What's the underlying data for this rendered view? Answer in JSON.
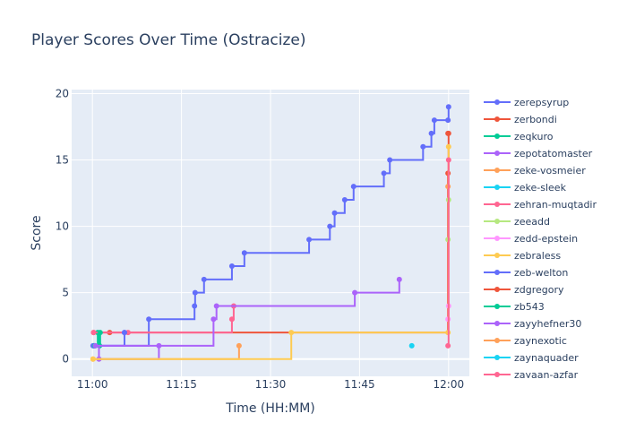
{
  "chart_data": {
    "type": "line",
    "title": "Player Scores Over Time (Ostracize)",
    "xlabel": "Time (HH:MM)",
    "ylabel": "Score",
    "line_shape": "step",
    "x_unit": "minutes after 11:00",
    "x_ticks": [
      "11:00",
      "11:15",
      "11:30",
      "11:45",
      "12:00"
    ],
    "x_tick_values": [
      0,
      15,
      30,
      45,
      60
    ],
    "y_ticks": [
      0,
      5,
      10,
      15,
      20
    ],
    "xlim": [
      -3.5,
      63.5
    ],
    "ylim": [
      -1.3,
      20.3
    ],
    "grid": true,
    "legend_position": "right",
    "plot_background": "#E5ECF6",
    "series": [
      {
        "name": "zerepsyrup",
        "color": "#636EFA",
        "points": [
          [
            0.2,
            1
          ],
          [
            9.5,
            3
          ],
          [
            17.2,
            4
          ],
          [
            17.3,
            5
          ],
          [
            18.8,
            6
          ],
          [
            23.5,
            7
          ],
          [
            25.6,
            8
          ],
          [
            36.5,
            9
          ],
          [
            40,
            10
          ],
          [
            40.8,
            11
          ],
          [
            42.5,
            12
          ],
          [
            44,
            13
          ],
          [
            49.1,
            14
          ],
          [
            50.1,
            15
          ],
          [
            55.7,
            16
          ],
          [
            57.1,
            17
          ],
          [
            57.6,
            18
          ],
          [
            59.9,
            18
          ],
          [
            60,
            19
          ]
        ]
      },
      {
        "name": "zerbondi",
        "color": "#EF553B",
        "points": [
          [
            0.2,
            2
          ],
          [
            2.9,
            2
          ],
          [
            59.9,
            14
          ],
          [
            60,
            17
          ]
        ]
      },
      {
        "name": "zeqkuro",
        "color": "#00CC96",
        "points": [
          [
            0.3,
            1
          ],
          [
            0.9,
            2
          ],
          [
            1.2,
            1
          ]
        ]
      },
      {
        "name": "zepotatomaster",
        "color": "#AB63FA",
        "points": [
          [
            0.2,
            1
          ],
          [
            1.1,
            0
          ],
          [
            11.2,
            1
          ]
        ]
      },
      {
        "name": "zeke-vosmeier",
        "color": "#FFA15A",
        "points": [
          [
            0.1,
            0
          ],
          [
            24.7,
            1
          ]
        ]
      },
      {
        "name": "zeke-sleek",
        "color": "#19D3F3",
        "points": [
          [
            53.8,
            1
          ]
        ]
      },
      {
        "name": "zehran-muqtadir",
        "color": "#FF6692",
        "points": [
          [
            0.2,
            2
          ],
          [
            6,
            2
          ],
          [
            23.5,
            3
          ],
          [
            23.8,
            4
          ]
        ]
      },
      {
        "name": "zeeadd",
        "color": "#B6E880",
        "points": [
          [
            59.9,
            9
          ],
          [
            60,
            12
          ]
        ]
      },
      {
        "name": "zedd-epstein",
        "color": "#FF97FF",
        "points": [
          [
            59.9,
            3
          ],
          [
            60,
            4
          ]
        ]
      },
      {
        "name": "zebraless",
        "color": "#FECB52",
        "points": [
          [
            0.1,
            0
          ],
          [
            33.5,
            2
          ],
          [
            59.9,
            2
          ],
          [
            60,
            16
          ]
        ]
      },
      {
        "name": "zeb-welton",
        "color": "#636EFA",
        "points": [
          [
            0.1,
            1
          ],
          [
            5.4,
            2
          ],
          [
            5.4,
            2
          ]
        ]
      },
      {
        "name": "zdgregory",
        "color": "#EF553B",
        "points": [
          [
            59.9,
            17
          ]
        ]
      },
      {
        "name": "zb543",
        "color": "#00CC96",
        "points": [
          [
            0.4,
            1
          ],
          [
            1.3,
            2
          ]
        ]
      },
      {
        "name": "zayyhefner30",
        "color": "#AB63FA",
        "points": [
          [
            0.5,
            1
          ],
          [
            20.4,
            3
          ],
          [
            20.9,
            4
          ],
          [
            44.2,
            5
          ],
          [
            51.7,
            6
          ]
        ]
      },
      {
        "name": "zaynexotic",
        "color": "#FFA15A",
        "points": [
          [
            59.9,
            13
          ]
        ]
      },
      {
        "name": "zaynaquader",
        "color": "#19D3F3",
        "points": []
      },
      {
        "name": "zayaan-azfar",
        "color": "#FF6692",
        "points": [
          [
            59.9,
            1
          ],
          [
            60,
            15
          ]
        ]
      }
    ]
  }
}
